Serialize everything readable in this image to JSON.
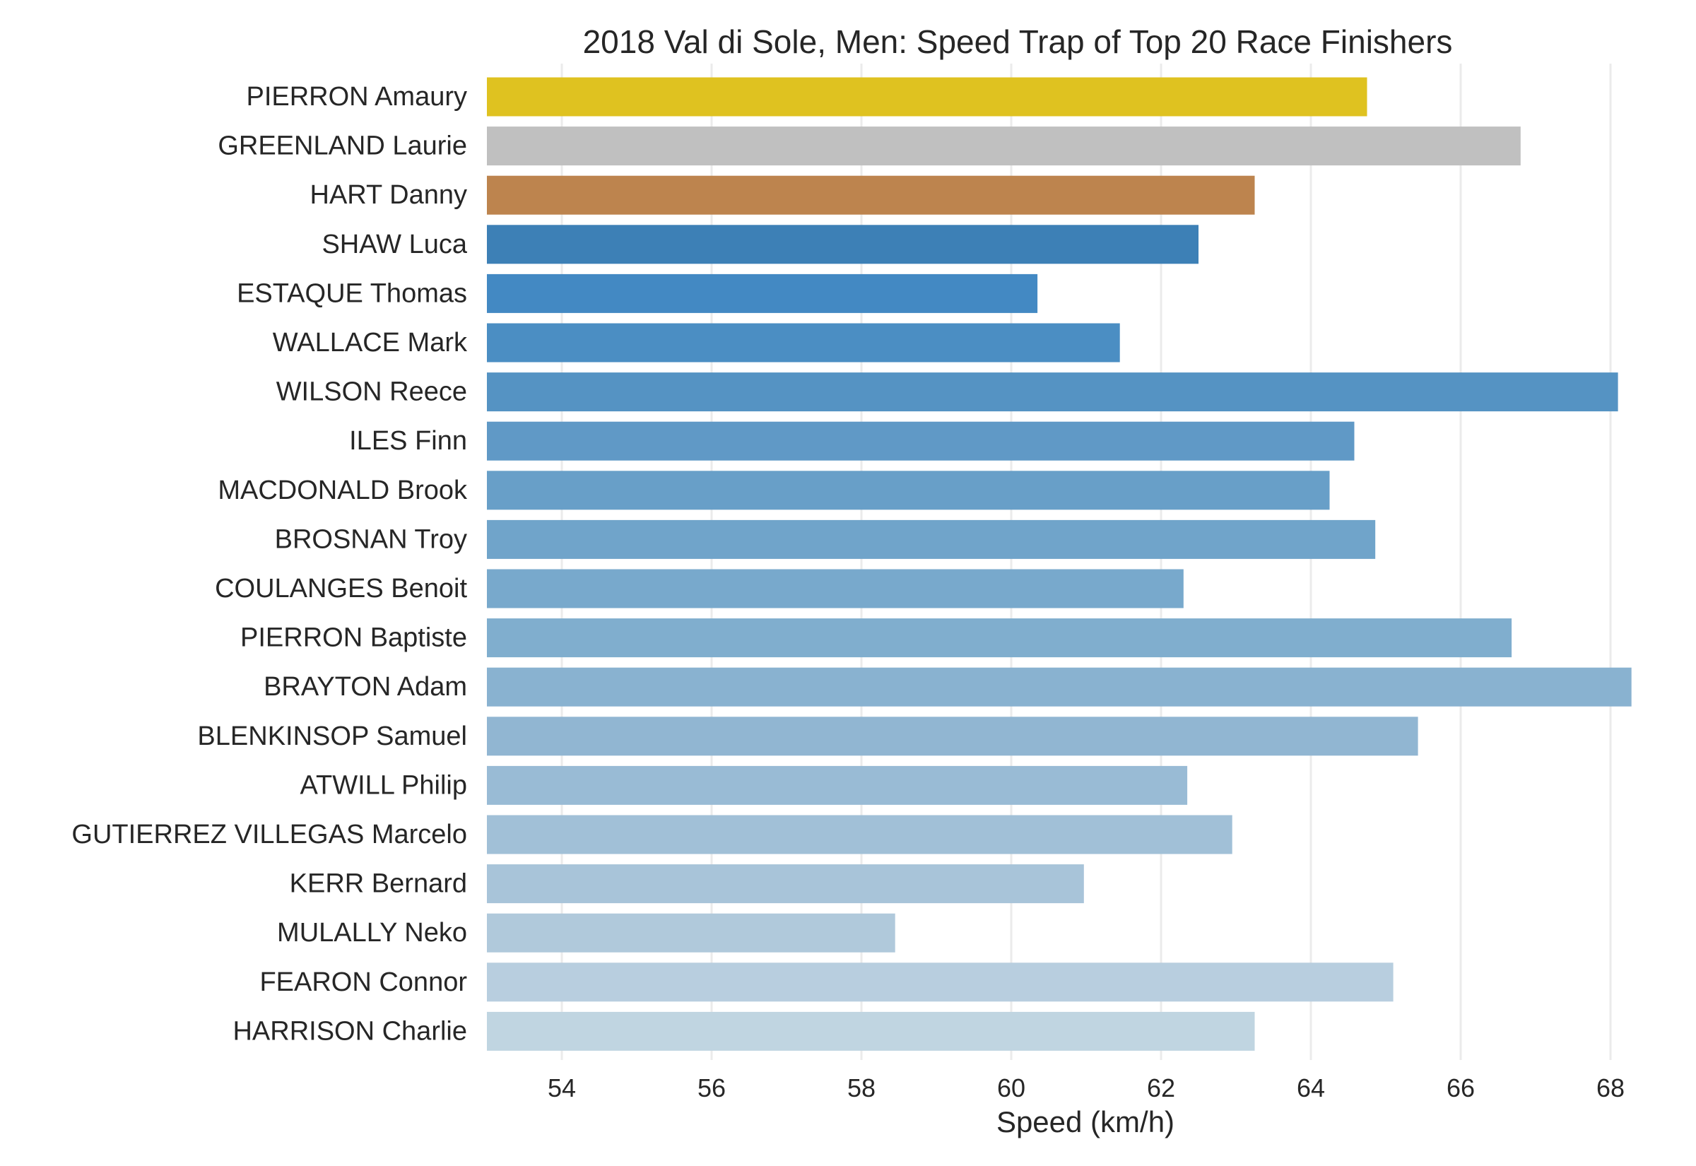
{
  "chart_data": {
    "type": "bar",
    "orientation": "horizontal",
    "title": "2018 Val di Sole, Men: Speed Trap of Top 20 Race Finishers",
    "xlabel": "Speed (km/h)",
    "ylabel": "",
    "xlim": [
      53,
      68.5
    ],
    "xticks": [
      54,
      56,
      58,
      60,
      62,
      64,
      66,
      68
    ],
    "grid": "vertical",
    "categories": [
      "PIERRON Amaury",
      "GREENLAND Laurie",
      "HART Danny",
      "SHAW Luca",
      "ESTAQUE Thomas",
      "WALLACE Mark",
      "WILSON Reece",
      "ILES Finn",
      "MACDONALD Brook",
      "BROSNAN Troy",
      "COULANGES Benoit",
      "PIERRON Baptiste",
      "BRAYTON Adam",
      "BLENKINSOP Samuel",
      "ATWILL Philip",
      "GUTIERREZ VILLEGAS Marcelo",
      "KERR Bernard",
      "MULALLY Neko",
      "FEARON Connor",
      "HARRISON Charlie"
    ],
    "values": [
      64.75,
      66.8,
      63.25,
      62.5,
      60.35,
      61.45,
      68.1,
      64.58,
      64.25,
      64.86,
      62.3,
      66.68,
      68.28,
      65.43,
      62.35,
      62.95,
      60.97,
      58.45,
      65.1,
      63.25
    ],
    "colors": [
      "#dfc220",
      "#c0c0c0",
      "#bd844e",
      "#3d80b6",
      "#4389c3",
      "#4b8ec3",
      "#5593c3",
      "#6099c6",
      "#689fc8",
      "#70a4ca",
      "#78a9cc",
      "#80aece",
      "#89b2d0",
      "#91b6d2",
      "#99bbd5",
      "#a1c0d7",
      "#a8c4d9",
      "#b0c9db",
      "#b8cedf",
      "#c0d5e1"
    ]
  }
}
